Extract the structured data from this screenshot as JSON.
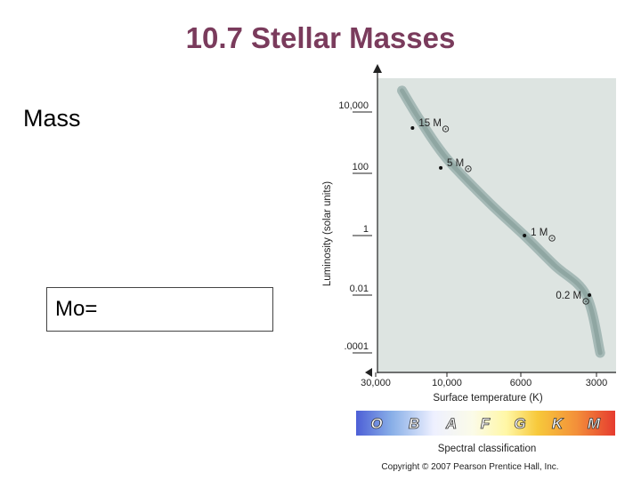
{
  "slide": {
    "title": "10.7 Stellar Masses",
    "bullet": "Mass",
    "formula_label": "Mo="
  },
  "chart_data": {
    "type": "line",
    "xlabel": "Surface temperature (K)",
    "ylabel": "Luminosity (solar units)",
    "x_ticks": [
      "30,000",
      "10,000",
      "6000",
      "3000"
    ],
    "y_ticks": [
      "10,000",
      "100",
      "1",
      "0.01",
      ".0001"
    ],
    "x_scale": "log, decreasing to the right",
    "y_scale": "log",
    "grid": false,
    "series": [
      {
        "name": "Main sequence",
        "points": [
          {
            "x": 20000,
            "y": 50000
          },
          {
            "x": 15000,
            "y": 5000
          },
          {
            "x": 10000,
            "y": 300
          },
          {
            "x": 7500,
            "y": 12
          },
          {
            "x": 5800,
            "y": 1
          },
          {
            "x": 4400,
            "y": 0.1
          },
          {
            "x": 3300,
            "y": 0.01
          },
          {
            "x": 2900,
            "y": 0.0001
          }
        ]
      }
    ],
    "annotations": [
      {
        "label": "15 M",
        "x": 17000,
        "y": 3000
      },
      {
        "label": "5 M",
        "x": 11000,
        "y": 150
      },
      {
        "label": "1 M",
        "x": 5800,
        "y": 1
      },
      {
        "label": "0.2 M",
        "x": 3200,
        "y": 0.01
      }
    ],
    "spectral_caption": "Spectral classification",
    "spectral_classes": [
      "O",
      "B",
      "A",
      "F",
      "G",
      "K",
      "M"
    ],
    "copyright": "Copyright © 2007 Pearson Prentice Hall, Inc."
  },
  "colors": {
    "title": "#7a3b5c",
    "plot_bg": "#dde4e1",
    "main_sequence": "#9fb4b1",
    "spectral_gradient": [
      "#4d5fd6",
      "#8ab0e8",
      "#f4f4f0",
      "#fff7a6",
      "#f7c93b",
      "#f3903a",
      "#e63b2f"
    ]
  }
}
